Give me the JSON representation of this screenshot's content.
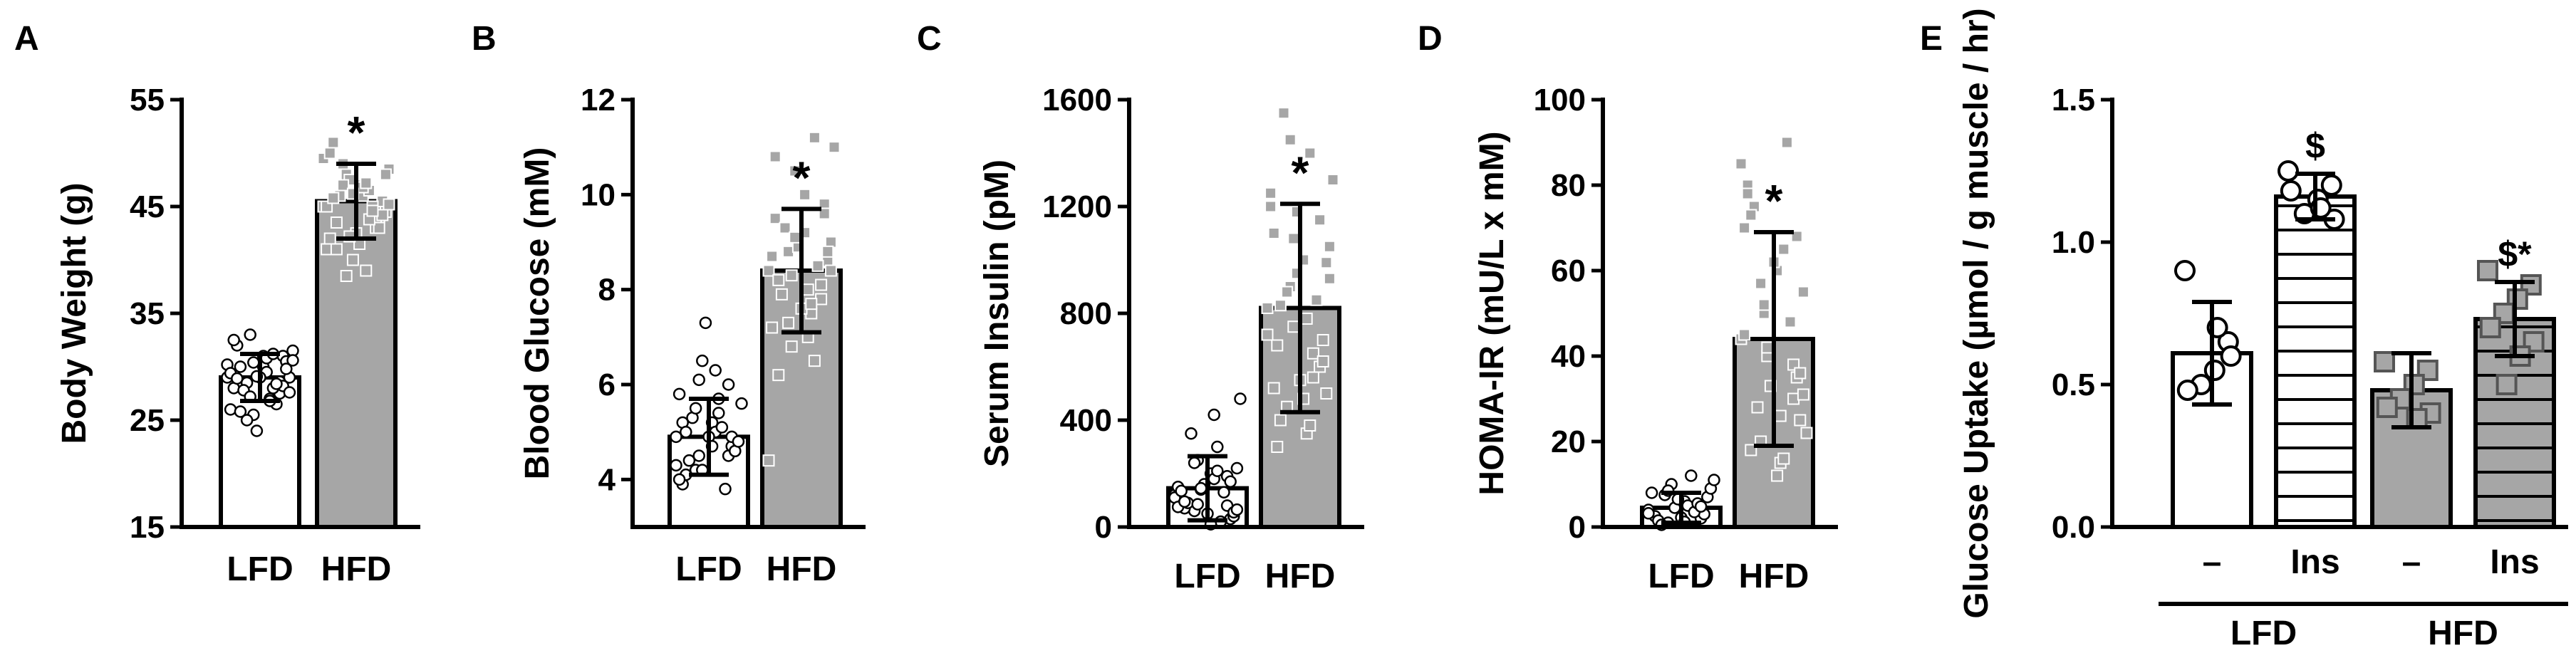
{
  "chart_data": [
    {
      "panel": "A",
      "type": "bar",
      "ylabel": "Body Weight (g)",
      "ylim": [
        15,
        55
      ],
      "yticks": [
        15,
        25,
        35,
        45,
        55
      ],
      "categories": [
        "LFD",
        "HFD"
      ],
      "values": [
        29,
        45.5
      ],
      "errors": [
        2.2,
        3.5
      ],
      "fills": [
        "#ffffff",
        "#a6a6a6"
      ],
      "annotations": [
        "",
        "*"
      ],
      "points": [
        [
          29,
          27.5,
          30,
          28.5,
          26,
          31,
          29.5,
          33,
          28,
          30.5,
          27,
          25.5,
          32,
          29,
          28,
          24,
          30,
          31.5,
          26.5,
          29,
          27.8,
          30.2,
          28.6,
          31,
          25,
          29.4,
          28.2,
          30.8,
          27.2,
          32.5,
          29.8,
          26.8,
          30.4,
          28.9,
          27.6,
          31.2,
          29.1,
          25.8,
          30.6,
          28.4
        ],
        [
          45,
          43,
          47,
          49,
          41,
          44,
          46,
          48,
          42,
          45.5,
          39,
          47.5,
          51,
          44.5,
          46.5,
          40,
          43.5,
          48.5,
          45,
          42.5,
          46,
          49.5,
          44,
          41.5,
          47,
          45,
          43,
          46.8,
          38.5,
          50,
          44.2,
          47.2,
          42.2,
          45.8,
          48,
          43.8,
          46.2,
          41,
          45.2,
          44.6
        ]
      ]
    },
    {
      "panel": "B",
      "type": "bar",
      "ylabel": "Blood Glucose (mM)",
      "ylim": [
        3,
        12
      ],
      "yticks": [
        4,
        6,
        8,
        10,
        12
      ],
      "categories": [
        "LFD",
        "HFD"
      ],
      "values": [
        4.9,
        8.4
      ],
      "errors": [
        0.8,
        1.3
      ],
      "fills": [
        "#ffffff",
        "#a6a6a6"
      ],
      "annotations": [
        "",
        "*"
      ],
      "points": [
        [
          4.9,
          4.5,
          5.2,
          4.2,
          5.8,
          4.7,
          5,
          6.1,
          3.9,
          4.6,
          5.4,
          6.5,
          4.1,
          4.8,
          5.1,
          7.3,
          4.4,
          5.6,
          3.8,
          4.9,
          5.3,
          4.3,
          6,
          4.7,
          5.5,
          4,
          4.9,
          6.3,
          4.5,
          5.2,
          4.6,
          5.7,
          4.2,
          5,
          4.8
        ],
        [
          8.4,
          7.8,
          9.2,
          8.8,
          7.2,
          9.8,
          8,
          6.8,
          9.5,
          8.6,
          7.5,
          10.5,
          8.2,
          9,
          6.5,
          8.9,
          7.9,
          11,
          8.5,
          7.6,
          9.3,
          4.4,
          8.1,
          10,
          7.3,
          8.7,
          9.6,
          7,
          8.3,
          10.8,
          8.8,
          7.7,
          9.1,
          6.2,
          8.4,
          11.2
        ]
      ]
    },
    {
      "panel": "C",
      "type": "bar",
      "ylabel": "Serum Insulin (pM)",
      "ylim": [
        0,
        1600
      ],
      "yticks": [
        0,
        400,
        800,
        1200,
        1600
      ],
      "categories": [
        "LFD",
        "HFD"
      ],
      "values": [
        145,
        820
      ],
      "errors": [
        120,
        390
      ],
      "fills": [
        "#ffffff",
        "#a6a6a6"
      ],
      "annotations": [
        "",
        "*"
      ],
      "points": [
        [
          120,
          80,
          200,
          60,
          150,
          30,
          180,
          250,
          100,
          40,
          300,
          140,
          70,
          220,
          20,
          160,
          90,
          480,
          130,
          50,
          350,
          110,
          190,
          10,
          240,
          75,
          170,
          420,
          85,
          135,
          55,
          210,
          145,
          95,
          65
        ],
        [
          820,
          600,
          1000,
          450,
          1200,
          700,
          350,
          900,
          1100,
          500,
          1400,
          750,
          300,
          1050,
          650,
          950,
          400,
          1300,
          850,
          550,
          1550,
          720,
          1150,
          480,
          880,
          1250,
          620,
          780,
          1450,
          520,
          990,
          380,
          1080,
          680,
          930,
          560,
          1180,
          830
        ]
      ]
    },
    {
      "panel": "D",
      "type": "bar",
      "ylabel": "HOMA-IR (mU/L x mM)",
      "ylim": [
        0,
        100
      ],
      "yticks": [
        0,
        20,
        40,
        60,
        80,
        100
      ],
      "categories": [
        "LFD",
        "HFD"
      ],
      "values": [
        4.5,
        44
      ],
      "errors": [
        3.5,
        25
      ],
      "fills": [
        "#ffffff",
        "#a6a6a6"
      ],
      "annotations": [
        "",
        "*"
      ],
      "points": [
        [
          4,
          2,
          6,
          1,
          8,
          3,
          5,
          10,
          2.5,
          7,
          12,
          4.5,
          1.5,
          9,
          3.5,
          6.5,
          0.5,
          11,
          5.5,
          2.2,
          7.5,
          3.2,
          4.8,
          1.2,
          8.5
        ],
        [
          44,
          30,
          60,
          20,
          70,
          35,
          15,
          50,
          80,
          25,
          65,
          40,
          18,
          55,
          90,
          33,
          75,
          22,
          48,
          62,
          28,
          85,
          38,
          12,
          57,
          45,
          68,
          26,
          52,
          78,
          36,
          16,
          42,
          73,
          31
        ]
      ]
    },
    {
      "panel": "E",
      "type": "bar",
      "ylabel": "Glucose Uptake (µmol / g muscle / hr)",
      "ylim": [
        0,
        1.5
      ],
      "yticks": [
        0.0,
        0.5,
        1.0,
        1.5
      ],
      "categories": [
        "–",
        "Ins",
        "–",
        "Ins"
      ],
      "groups": [
        "LFD",
        "HFD"
      ],
      "values": [
        0.61,
        1.16,
        0.48,
        0.73
      ],
      "errors": [
        0.18,
        0.08,
        0.13,
        0.13
      ],
      "fills": [
        "#ffffff",
        "#ffffff",
        "#a6a6a6",
        "#a6a6a6"
      ],
      "hatched": [
        false,
        true,
        false,
        true
      ],
      "annotations": [
        "",
        "$",
        "",
        "$*"
      ],
      "points": [
        [
          0.9,
          0.65,
          0.55,
          0.5,
          0.48,
          0.6,
          0.7
        ],
        [
          1.25,
          1.2,
          1.15,
          1.1,
          1.18,
          1.08,
          1.12
        ],
        [
          0.58,
          0.55,
          0.5,
          0.45,
          0.42,
          0.4,
          0.38
        ],
        [
          0.9,
          0.85,
          0.8,
          0.75,
          0.7,
          0.65,
          0.6,
          0.5
        ]
      ]
    }
  ],
  "panel_labels": [
    "A",
    "B",
    "C",
    "D",
    "E"
  ]
}
